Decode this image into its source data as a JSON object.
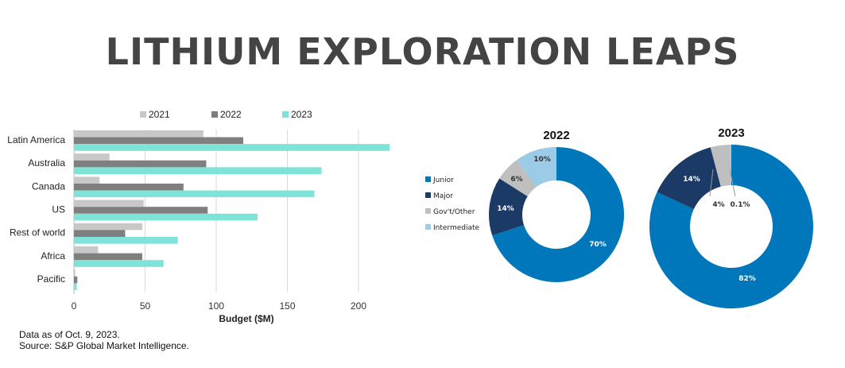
{
  "title": "LITHIUM EXPLORATION LEAPS",
  "footnote": {
    "line1": "Data as of Oct. 9, 2023.",
    "line2": "Source: S&P Global Market Intelligence."
  },
  "chart_data": [
    {
      "type": "bar",
      "orientation": "horizontal",
      "xlabel": "Budget ($M)",
      "xlim": [
        0,
        220
      ],
      "xticks": [
        0,
        50,
        100,
        150,
        200
      ],
      "grid": true,
      "legend": "top",
      "categories": [
        "Latin America",
        "Australia",
        "Canada",
        "US",
        "Rest of world",
        "Africa",
        "Pacific"
      ],
      "series": [
        {
          "name": "2021",
          "color": "#c8c8c8",
          "values": [
            91,
            25,
            18,
            49,
            48,
            17,
            1
          ]
        },
        {
          "name": "2022",
          "color": "#7f7f7f",
          "values": [
            119,
            93,
            77,
            94,
            36,
            48,
            2.4
          ]
        },
        {
          "name": "2023",
          "color": "#7fe3d8",
          "values": [
            222,
            174,
            169,
            129,
            73,
            63,
            2
          ]
        }
      ]
    },
    {
      "type": "pie",
      "donut": true,
      "title": "2022",
      "legend": "left",
      "categories": [
        "Junior",
        "Major",
        "Gov't/Other",
        "Intermediate"
      ],
      "colors": [
        "#0077bb",
        "#1b3a66",
        "#bfbfbf",
        "#9ccbe8"
      ],
      "values": [
        70,
        14,
        6,
        10
      ],
      "labels": [
        "70%",
        "14%",
        "6%",
        "10%"
      ]
    },
    {
      "type": "pie",
      "donut": true,
      "title": "2023",
      "categories": [
        "Junior",
        "Major",
        "Gov't/Other",
        "Intermediate"
      ],
      "colors": [
        "#0077bb",
        "#1b3a66",
        "#bfbfbf",
        "#9ccbe8"
      ],
      "values": [
        82,
        14,
        4,
        0.1
      ],
      "labels": [
        "82%",
        "14%",
        "4%",
        "0.1%"
      ]
    }
  ]
}
